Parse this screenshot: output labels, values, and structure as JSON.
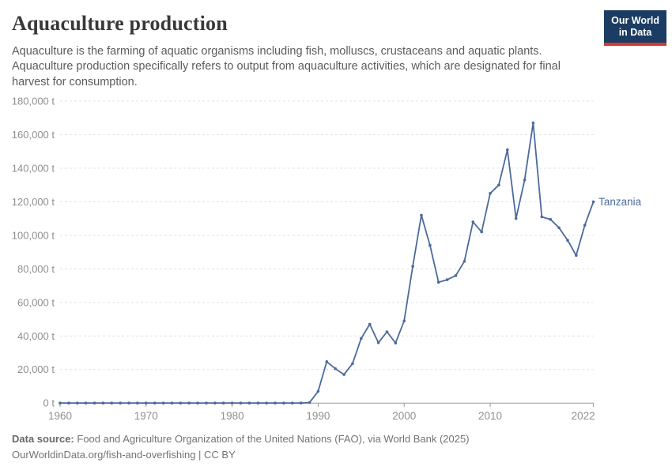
{
  "header": {
    "title": "Aquaculture production",
    "subtitle": "Aquaculture is the farming of aquatic organisms including fish, molluscs, crustaceans and aquatic plants. Aquaculture production specifically refers to output from aquaculture activities, which are designated for final harvest for consumption.",
    "logo": {
      "line1": "Our World",
      "line2": "in Data",
      "bg_color": "#1c3d63",
      "accent_color": "#d13a34"
    }
  },
  "chart_data": {
    "type": "line",
    "title": "Aquaculture production",
    "unit": "t",
    "grid": "horizontal-dashed",
    "legend_position": "end-of-line-label",
    "xlim": [
      1959.8,
      2023
    ],
    "ylim": [
      0,
      180000
    ],
    "y_ticks": [
      0,
      20000,
      40000,
      60000,
      80000,
      100000,
      120000,
      140000,
      160000,
      180000
    ],
    "x_ticks": [
      1960,
      1970,
      1980,
      1990,
      2000,
      2010,
      2022
    ],
    "line_color": "#4C6A9C",
    "grid_color": "#e3e3e3",
    "axis_color": "#999999",
    "tick_label_color": "#8f8f8f",
    "end_label": "Tanzania",
    "series": [
      {
        "name": "Tanzania",
        "x": [
          1960,
          1961,
          1962,
          1963,
          1964,
          1965,
          1966,
          1967,
          1968,
          1969,
          1970,
          1971,
          1972,
          1973,
          1974,
          1975,
          1976,
          1977,
          1978,
          1979,
          1980,
          1981,
          1982,
          1983,
          1984,
          1985,
          1986,
          1987,
          1988,
          1989,
          1990,
          1991,
          1992,
          1993,
          1994,
          1995,
          1996,
          1997,
          1998,
          1999,
          2000,
          2001,
          2002,
          2003,
          2004,
          2005,
          2006,
          2007,
          2008,
          2009,
          2010,
          2011,
          2012,
          2013,
          2014,
          2015,
          2016,
          2017,
          2018,
          2019,
          2020,
          2021,
          2022
        ],
        "values": [
          0,
          0,
          0,
          0,
          0,
          0,
          0,
          0,
          0,
          0,
          0,
          0,
          0,
          0,
          0,
          0,
          0,
          0,
          0,
          0,
          0,
          0,
          0,
          0,
          0,
          0,
          0,
          0,
          0,
          300,
          7000,
          24700,
          20500,
          17000,
          23500,
          38500,
          47000,
          36000,
          42500,
          35800,
          49000,
          81500,
          112000,
          94000,
          72000,
          73500,
          76000,
          84500,
          108000,
          102000,
          125000,
          130000,
          151000,
          110000,
          133000,
          167000,
          111000,
          109500,
          104500,
          97000,
          88000,
          106000,
          120000
        ]
      }
    ]
  },
  "footer": {
    "source_label": "Data source:",
    "source_text": "Food and Agriculture Organization of the United Nations (FAO), via World Bank (2025)",
    "note_text": "OurWorldinData.org/fish-and-overfishing | CC BY"
  }
}
